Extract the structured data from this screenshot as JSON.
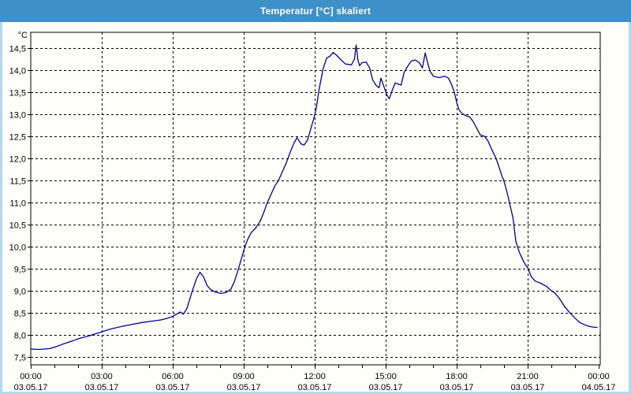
{
  "window": {
    "title": "Temperatur [°C] skaliert"
  },
  "colors": {
    "titlebar": "#3D91C8",
    "window_border": "#AFDCF5",
    "chart_background": "#FDFFF8",
    "grid": "#000000",
    "line": "#0000A0",
    "title_text": "#FFFFFF",
    "label_text": "#000000"
  },
  "chart_data": {
    "type": "line",
    "title": "Temperatur [°C] skaliert",
    "grid": true,
    "legend": "none",
    "y_axis": {
      "unit": "°C",
      "min": 7.5,
      "max": 14.5,
      "tick_step": 0.5,
      "decimal_separator": ",",
      "tick_values": [
        7.5,
        8,
        8.5,
        9,
        9.5,
        10,
        10.5,
        11,
        11.5,
        12,
        12.5,
        13,
        13.5,
        14,
        14.5
      ],
      "tick_labels": [
        "7,5",
        "8,0",
        "8,5",
        "9,0",
        "9,5",
        "10,0",
        "10,5",
        "11,0",
        "11,5",
        "12,0",
        "12,5",
        "13,0",
        "13,5",
        "14,0",
        "14,5"
      ]
    },
    "x_axis": {
      "hours_span": 24,
      "major_tick_hours": 3,
      "minor_tick_hours": 1,
      "labels": [
        {
          "hour": 0,
          "time": "00:00",
          "date": "03.05.17"
        },
        {
          "hour": 3,
          "time": "03:00",
          "date": "03.05.17"
        },
        {
          "hour": 6,
          "time": "06:00",
          "date": "03.05.17"
        },
        {
          "hour": 9,
          "time": "09:00",
          "date": "03.05.17"
        },
        {
          "hour": 12,
          "time": "12:00",
          "date": "03.05.17"
        },
        {
          "hour": 15,
          "time": "15:00",
          "date": "03.05.17"
        },
        {
          "hour": 18,
          "time": "18:00",
          "date": "03.05.17"
        },
        {
          "hour": 21,
          "time": "21:00",
          "date": "03.05.17"
        },
        {
          "hour": 24,
          "time": "00:00",
          "date": "04.05.17"
        }
      ]
    },
    "series": [
      {
        "name": "Temperatur",
        "color": "#0000A0",
        "points": [
          [
            0.0,
            7.68
          ],
          [
            0.35,
            7.67
          ],
          [
            0.8,
            7.69
          ],
          [
            1.1,
            7.74
          ],
          [
            1.4,
            7.8
          ],
          [
            1.75,
            7.86
          ],
          [
            2.05,
            7.92
          ],
          [
            2.4,
            7.97
          ],
          [
            2.65,
            8.01
          ],
          [
            3.0,
            8.07
          ],
          [
            3.35,
            8.13
          ],
          [
            3.75,
            8.18
          ],
          [
            4.2,
            8.23
          ],
          [
            4.7,
            8.28
          ],
          [
            5.1,
            8.31
          ],
          [
            5.5,
            8.34
          ],
          [
            5.8,
            8.38
          ],
          [
            6.0,
            8.42
          ],
          [
            6.2,
            8.48
          ],
          [
            6.32,
            8.52
          ],
          [
            6.45,
            8.47
          ],
          [
            6.6,
            8.6
          ],
          [
            6.8,
            8.95
          ],
          [
            7.0,
            9.27
          ],
          [
            7.15,
            9.42
          ],
          [
            7.3,
            9.32
          ],
          [
            7.45,
            9.12
          ],
          [
            7.6,
            9.03
          ],
          [
            7.8,
            8.97
          ],
          [
            8.05,
            8.94
          ],
          [
            8.25,
            8.96
          ],
          [
            8.45,
            9.03
          ],
          [
            8.6,
            9.2
          ],
          [
            8.75,
            9.45
          ],
          [
            8.9,
            9.72
          ],
          [
            9.05,
            10.0
          ],
          [
            9.18,
            10.18
          ],
          [
            9.32,
            10.32
          ],
          [
            9.5,
            10.42
          ],
          [
            9.7,
            10.58
          ],
          [
            9.85,
            10.78
          ],
          [
            10.0,
            11.0
          ],
          [
            10.15,
            11.18
          ],
          [
            10.32,
            11.38
          ],
          [
            10.47,
            11.5
          ],
          [
            10.65,
            11.72
          ],
          [
            10.8,
            11.9
          ],
          [
            10.95,
            12.12
          ],
          [
            11.1,
            12.32
          ],
          [
            11.25,
            12.47
          ],
          [
            11.42,
            12.33
          ],
          [
            11.55,
            12.3
          ],
          [
            11.7,
            12.42
          ],
          [
            11.85,
            12.7
          ],
          [
            11.97,
            12.92
          ],
          [
            12.07,
            13.15
          ],
          [
            12.18,
            13.55
          ],
          [
            12.35,
            14.02
          ],
          [
            12.5,
            14.27
          ],
          [
            12.65,
            14.32
          ],
          [
            12.78,
            14.4
          ],
          [
            12.92,
            14.34
          ],
          [
            13.1,
            14.24
          ],
          [
            13.3,
            14.14
          ],
          [
            13.55,
            14.12
          ],
          [
            13.68,
            14.25
          ],
          [
            13.75,
            14.57
          ],
          [
            13.83,
            14.22
          ],
          [
            13.9,
            14.1
          ],
          [
            14.0,
            14.17
          ],
          [
            14.18,
            14.18
          ],
          [
            14.32,
            14.05
          ],
          [
            14.45,
            13.78
          ],
          [
            14.6,
            13.65
          ],
          [
            14.72,
            13.6
          ],
          [
            14.8,
            13.82
          ],
          [
            14.93,
            13.62
          ],
          [
            15.05,
            13.44
          ],
          [
            15.15,
            13.35
          ],
          [
            15.28,
            13.55
          ],
          [
            15.4,
            13.71
          ],
          [
            15.55,
            13.68
          ],
          [
            15.65,
            13.66
          ],
          [
            15.78,
            13.95
          ],
          [
            15.92,
            14.08
          ],
          [
            16.07,
            14.2
          ],
          [
            16.25,
            14.23
          ],
          [
            16.42,
            14.17
          ],
          [
            16.55,
            14.05
          ],
          [
            16.67,
            14.39
          ],
          [
            16.78,
            14.15
          ],
          [
            16.88,
            13.97
          ],
          [
            17.02,
            13.86
          ],
          [
            17.25,
            13.83
          ],
          [
            17.5,
            13.86
          ],
          [
            17.65,
            13.82
          ],
          [
            17.78,
            13.68
          ],
          [
            17.9,
            13.5
          ],
          [
            18.0,
            13.27
          ],
          [
            18.1,
            13.1
          ],
          [
            18.22,
            13.02
          ],
          [
            18.38,
            12.97
          ],
          [
            18.55,
            12.94
          ],
          [
            18.7,
            12.83
          ],
          [
            18.85,
            12.68
          ],
          [
            19.0,
            12.53
          ],
          [
            19.18,
            12.5
          ],
          [
            19.32,
            12.4
          ],
          [
            19.5,
            12.18
          ],
          [
            19.65,
            12.02
          ],
          [
            19.78,
            11.82
          ],
          [
            19.9,
            11.62
          ],
          [
            20.0,
            11.48
          ],
          [
            20.12,
            11.25
          ],
          [
            20.25,
            10.95
          ],
          [
            20.38,
            10.65
          ],
          [
            20.5,
            10.12
          ],
          [
            20.65,
            9.87
          ],
          [
            20.85,
            9.64
          ],
          [
            21.0,
            9.52
          ],
          [
            21.15,
            9.32
          ],
          [
            21.32,
            9.22
          ],
          [
            21.55,
            9.17
          ],
          [
            21.8,
            9.1
          ],
          [
            22.0,
            9.0
          ],
          [
            22.15,
            8.95
          ],
          [
            22.35,
            8.82
          ],
          [
            22.55,
            8.65
          ],
          [
            22.75,
            8.52
          ],
          [
            23.0,
            8.38
          ],
          [
            23.2,
            8.28
          ],
          [
            23.45,
            8.22
          ],
          [
            23.7,
            8.18
          ],
          [
            23.93,
            8.17
          ]
        ]
      }
    ]
  }
}
